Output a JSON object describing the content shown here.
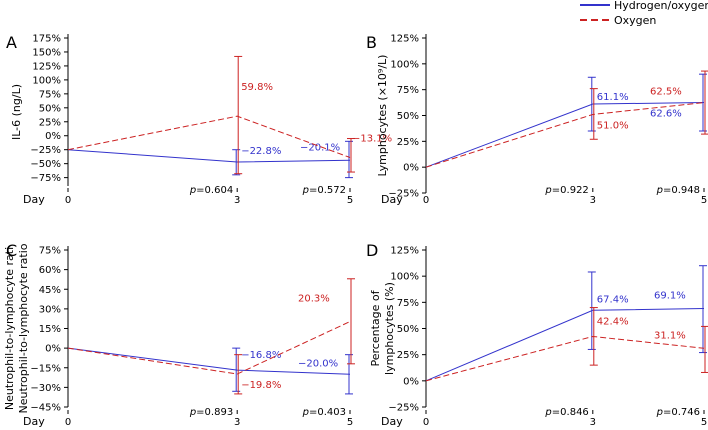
{
  "legend": [
    {
      "name": "Hydrogen/oxygen",
      "color": "#3333cc",
      "dash": "solid"
    },
    {
      "name": "Oxygen",
      "color": "#cc2222",
      "dash": "dashed"
    }
  ],
  "x_axis": {
    "label": "Day",
    "ticks": [
      "0",
      "3",
      "5"
    ]
  },
  "chart_data": [
    {
      "type": "line",
      "panel": "A",
      "ylabel": "IL-6 (ng/L)",
      "x": [
        0,
        3,
        5
      ],
      "ylim": [
        -90,
        175
      ],
      "yticks": [
        -75,
        -50,
        -25,
        0,
        25,
        50,
        75,
        100,
        125,
        150,
        175
      ],
      "series": [
        {
          "name": "Hydrogen/oxygen",
          "values": [
            -25,
            -47,
            -44
          ],
          "err_low": [
            null,
            -70,
            -75
          ],
          "err_high": [
            null,
            -25,
            -10
          ],
          "labels": [
            "",
            "−22.8%",
            "−20.1%"
          ]
        },
        {
          "name": "Oxygen",
          "values": [
            -25,
            35,
            -39
          ],
          "err_low": [
            null,
            -68,
            -65
          ],
          "err_high": [
            null,
            142,
            -5
          ],
          "labels": [
            "",
            "59.8%",
            "−13.1%"
          ]
        }
      ],
      "pvalues": [
        "0.604",
        "0.572"
      ]
    },
    {
      "type": "line",
      "panel": "B",
      "ylabel": "Lymphocytes (×10⁹/L)",
      "x": [
        0,
        3,
        5
      ],
      "ylim": [
        -25,
        125
      ],
      "yticks": [
        -25,
        0,
        25,
        50,
        75,
        100,
        125
      ],
      "series": [
        {
          "name": "Hydrogen/oxygen",
          "values": [
            0,
            61.1,
            62.6
          ],
          "err_low": [
            null,
            35,
            35
          ],
          "err_high": [
            null,
            87,
            90
          ],
          "labels": [
            "",
            "61.1%",
            "62.6%"
          ]
        },
        {
          "name": "Oxygen",
          "values": [
            0,
            51.0,
            62.5
          ],
          "err_low": [
            null,
            27,
            32
          ],
          "err_high": [
            null,
            76,
            93
          ],
          "labels": [
            "",
            "51.0%",
            "62.5%"
          ]
        }
      ],
      "pvalues": [
        "0.922",
        "0.948"
      ]
    },
    {
      "type": "line",
      "panel": "C",
      "ylabel": "Neutrophil-to-lymphocyte ratio",
      "x": [
        0,
        3,
        5
      ],
      "ylim": [
        -45,
        75
      ],
      "yticks": [
        -45,
        -30,
        -15,
        0,
        15,
        30,
        45,
        60,
        75
      ],
      "series": [
        {
          "name": "Hydrogen/oxygen",
          "values": [
            0,
            -16.8,
            -20.0
          ],
          "err_low": [
            null,
            -33,
            -35
          ],
          "err_high": [
            null,
            0,
            -5
          ],
          "labels": [
            "",
            "−16.8%",
            "−20.0%"
          ]
        },
        {
          "name": "Oxygen",
          "values": [
            0,
            -19.8,
            20.3
          ],
          "err_low": [
            null,
            -35,
            -12
          ],
          "err_high": [
            null,
            -5,
            53
          ],
          "labels": [
            "",
            "−19.8%",
            "20.3%"
          ]
        }
      ],
      "pvalues": [
        "0.893",
        "0.403"
      ]
    },
    {
      "type": "line",
      "panel": "D",
      "ylabel": "Percentage of lymphocytes (%)",
      "x": [
        0,
        3,
        5
      ],
      "ylim": [
        -25,
        125
      ],
      "yticks": [
        -25,
        0,
        25,
        50,
        75,
        100,
        125
      ],
      "series": [
        {
          "name": "Hydrogen/oxygen",
          "values": [
            0,
            67.4,
            69.1
          ],
          "err_low": [
            null,
            30,
            27
          ],
          "err_high": [
            null,
            104,
            110
          ],
          "labels": [
            "",
            "67.4%",
            "69.1%"
          ]
        },
        {
          "name": "Oxygen",
          "values": [
            0,
            42.4,
            31.1
          ],
          "err_low": [
            null,
            15,
            8
          ],
          "err_high": [
            null,
            70,
            52
          ],
          "labels": [
            "",
            "42.4%",
            "31.1%"
          ]
        }
      ],
      "pvalues": [
        "0.846",
        "0.746"
      ]
    }
  ]
}
